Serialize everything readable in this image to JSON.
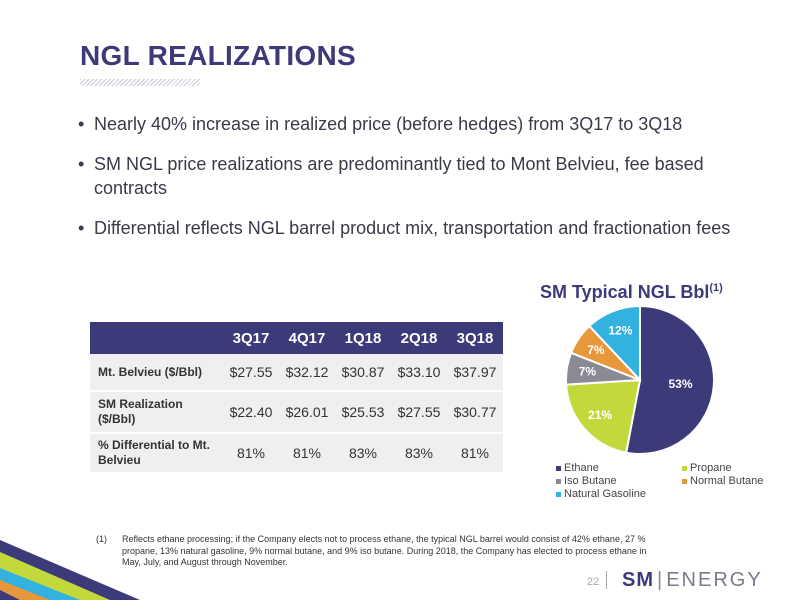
{
  "header": {
    "title": "NGL REALIZATIONS"
  },
  "bullets": [
    "Nearly 40% increase in realized price (before hedges) from 3Q17 to 3Q18",
    "SM NGL price realizations are predominantly tied to Mont Belvieu, fee based contracts",
    "Differential reflects NGL barrel product mix, transportation and fractionation fees"
  ],
  "table": {
    "columns": [
      "3Q17",
      "4Q17",
      "1Q18",
      "2Q18",
      "3Q18"
    ],
    "rows": [
      {
        "label": "Mt. Belvieu ($/Bbl)",
        "values": [
          "$27.55",
          "$32.12",
          "$30.87",
          "$33.10",
          "$37.97"
        ]
      },
      {
        "label": "SM Realization ($/Bbl)",
        "values": [
          "$22.40",
          "$26.01",
          "$25.53",
          "$27.55",
          "$30.77"
        ]
      },
      {
        "label": "% Differential to Mt. Belvieu",
        "values": [
          "81%",
          "81%",
          "83%",
          "83%",
          "81%"
        ]
      }
    ]
  },
  "chart_data": {
    "type": "pie",
    "title": "SM Typical NGL Bbl",
    "title_superscript": "(1)",
    "slices": [
      {
        "label": "Ethane",
        "value": 53,
        "value_label": "53%",
        "color": "#3d3a7a"
      },
      {
        "label": "Propane",
        "value": 21,
        "value_label": "21%",
        "color": "#c3d93b"
      },
      {
        "label": "Iso Butane",
        "value": 7,
        "value_label": "7%",
        "color": "#8a8a94"
      },
      {
        "label": "Normal Butane",
        "value": 7,
        "value_label": "7%",
        "color": "#e8973a"
      },
      {
        "label": "Natural Gasoline",
        "value": 12,
        "value_label": "12%",
        "color": "#33b2e0"
      }
    ],
    "legend_position": "bottom"
  },
  "footnote": {
    "marker": "(1)",
    "text": "Reflects ethane processing; if the Company elects not to process ethane, the typical NGL barrel would consist of 42% ethane, 27 % propane, 13% natural gasoline, 9% normal butane, and 9% iso butane. During 2018, the Company has elected to process ethane in May, July, and August through November."
  },
  "footer": {
    "page_number": "22",
    "logo_sm": "SM",
    "logo_bar": "|",
    "logo_energy": "ENERGY"
  },
  "colors": {
    "brand": "#3d3a7a",
    "table_header": "#3d3a7a",
    "table_row": "#efeff2"
  }
}
